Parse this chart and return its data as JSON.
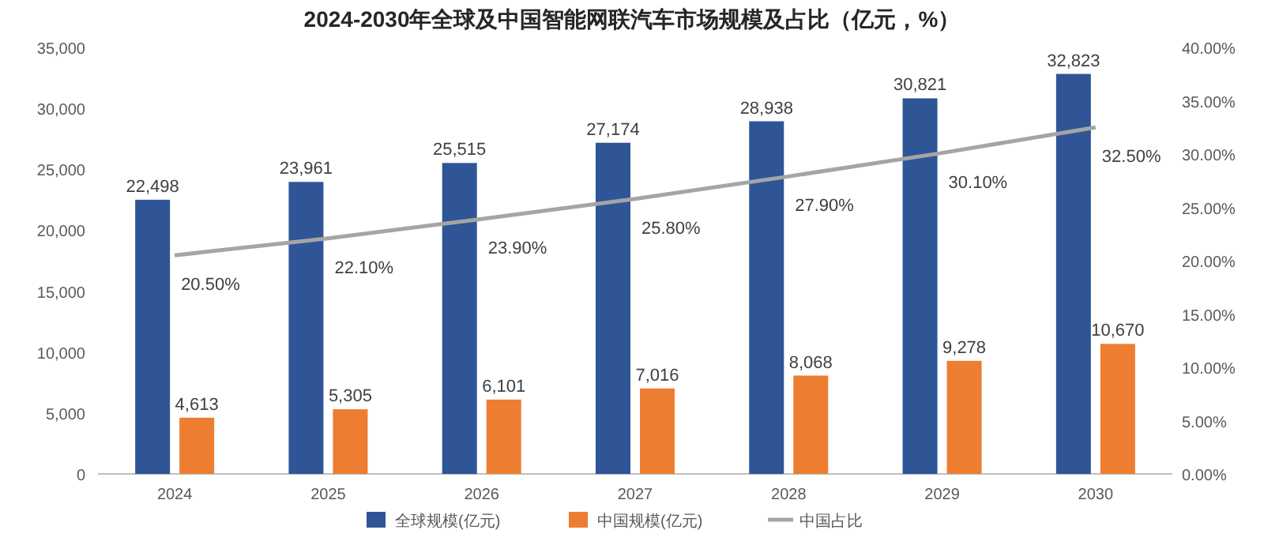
{
  "chart_data": {
    "type": "bar",
    "title": "2024-2030年全球及中国智能网联汽车市场规模及占比（亿元，%）",
    "categories": [
      "2024",
      "2025",
      "2026",
      "2027",
      "2028",
      "2029",
      "2030"
    ],
    "series": [
      {
        "name": "全球规模(亿元)",
        "color": "#2f5597",
        "values": [
          22498,
          23961,
          25515,
          27174,
          28938,
          30821,
          32823
        ],
        "value_labels": [
          "22,498",
          "23,961",
          "25,515",
          "27,174",
          "28,938",
          "30,821",
          "32,823"
        ]
      },
      {
        "name": "中国规模(亿元)",
        "color": "#ed7d31",
        "values": [
          4613,
          5305,
          6101,
          7016,
          8068,
          9278,
          10670
        ],
        "value_labels": [
          "4,613",
          "5,305",
          "6,101",
          "7,016",
          "8,068",
          "9,278",
          "10,670"
        ]
      },
      {
        "name": "中国占比",
        "type": "line",
        "axis": "y2",
        "color": "#a5a5a5",
        "values": [
          20.5,
          22.1,
          23.9,
          25.8,
          27.9,
          30.1,
          32.5
        ],
        "value_labels": [
          "20.50%",
          "22.10%",
          "23.90%",
          "25.80%",
          "27.90%",
          "30.10%",
          "32.50%"
        ]
      }
    ],
    "ylim": [
      0,
      35000
    ],
    "yticks": [
      {
        "value": 0,
        "label": "0"
      },
      {
        "value": 5000,
        "label": "5,000"
      },
      {
        "value": 10000,
        "label": "10,000"
      },
      {
        "value": 15000,
        "label": "15,000"
      },
      {
        "value": 20000,
        "label": "20,000"
      },
      {
        "value": 25000,
        "label": "25,000"
      },
      {
        "value": 30000,
        "label": "30,000"
      },
      {
        "value": 35000,
        "label": "35,000"
      }
    ],
    "y2lim": [
      0,
      40
    ],
    "y2ticks": [
      {
        "value": 0,
        "label": "0.00%"
      },
      {
        "value": 5,
        "label": "5.00%"
      },
      {
        "value": 10,
        "label": "10.00%"
      },
      {
        "value": 15,
        "label": "15.00%"
      },
      {
        "value": 20,
        "label": "20.00%"
      },
      {
        "value": 25,
        "label": "25.00%"
      },
      {
        "value": 30,
        "label": "30.00%"
      },
      {
        "value": 35,
        "label": "35.00%"
      },
      {
        "value": 40,
        "label": "40.00%"
      }
    ],
    "legend": "bottom",
    "grid": false,
    "marker": "none"
  }
}
